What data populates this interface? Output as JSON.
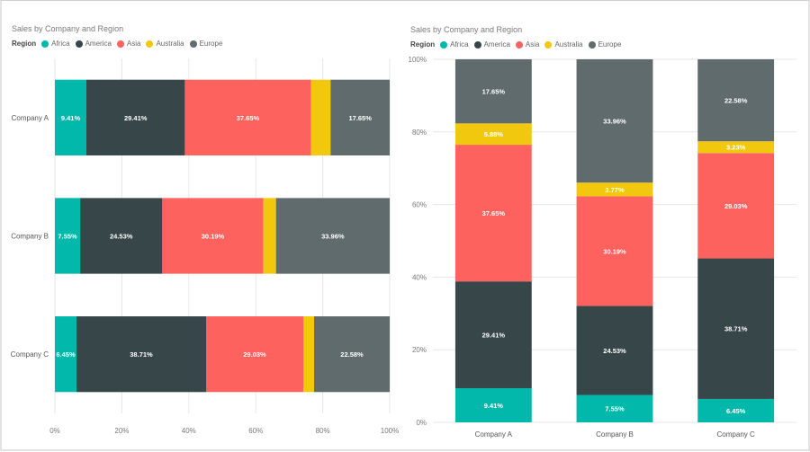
{
  "chart_data": [
    {
      "type": "bar",
      "orientation": "horizontal",
      "stacked": "100%",
      "title": "Sales by Company and Region",
      "legend_title": "Region",
      "legend_position": "top-left",
      "categories": [
        "Company A",
        "Company B",
        "Company C"
      ],
      "series": [
        {
          "name": "Africa",
          "color": "#01B8AA",
          "values": [
            9.41,
            7.55,
            6.45
          ]
        },
        {
          "name": "America",
          "color": "#374649",
          "values": [
            29.41,
            24.53,
            38.71
          ]
        },
        {
          "name": "Asia",
          "color": "#FD625E",
          "values": [
            37.65,
            30.19,
            29.03
          ]
        },
        {
          "name": "Australia",
          "color": "#F2C80F",
          "values": [
            5.88,
            3.77,
            3.23
          ]
        },
        {
          "name": "Europe",
          "color": "#5F6B6D",
          "values": [
            17.65,
            33.96,
            22.58
          ]
        }
      ],
      "shown_labels": [
        [
          "9.41%",
          "29.41%",
          "37.65%",
          "",
          "17.65%"
        ],
        [
          "7.55%",
          "24.53%",
          "30.19%",
          "",
          "33.96%"
        ],
        [
          "6.45%",
          "38.71%",
          "29.03%",
          "",
          "22.58%"
        ]
      ],
      "axis_ticks": [
        "0%",
        "20%",
        "40%",
        "60%",
        "80%",
        "100%"
      ],
      "xlim": [
        0,
        100
      ],
      "grid": true
    },
    {
      "type": "bar",
      "orientation": "vertical",
      "stacked": "100%",
      "title": "Sales by Company and Region",
      "legend_title": "Region",
      "legend_position": "top-left",
      "categories": [
        "Company A",
        "Company B",
        "Company C"
      ],
      "series": [
        {
          "name": "Africa",
          "color": "#01B8AA",
          "values": [
            9.41,
            7.55,
            6.45
          ]
        },
        {
          "name": "America",
          "color": "#374649",
          "values": [
            29.41,
            24.53,
            38.71
          ]
        },
        {
          "name": "Asia",
          "color": "#FD625E",
          "values": [
            37.65,
            30.19,
            29.03
          ]
        },
        {
          "name": "Australia",
          "color": "#F2C80F",
          "values": [
            5.88,
            3.77,
            3.23
          ]
        },
        {
          "name": "Europe",
          "color": "#5F6B6D",
          "values": [
            17.65,
            33.96,
            22.58
          ]
        }
      ],
      "shown_labels": [
        [
          "9.41%",
          "29.41%",
          "37.65%",
          "5.88%",
          "17.65%"
        ],
        [
          "7.55%",
          "24.53%",
          "30.19%",
          "3.77%",
          "33.96%"
        ],
        [
          "6.45%",
          "38.71%",
          "29.03%",
          "3.23%",
          "22.58%"
        ]
      ],
      "axis_ticks": [
        "0%",
        "20%",
        "40%",
        "60%",
        "80%",
        "100%"
      ],
      "ylim": [
        0,
        100
      ],
      "grid": true
    }
  ]
}
